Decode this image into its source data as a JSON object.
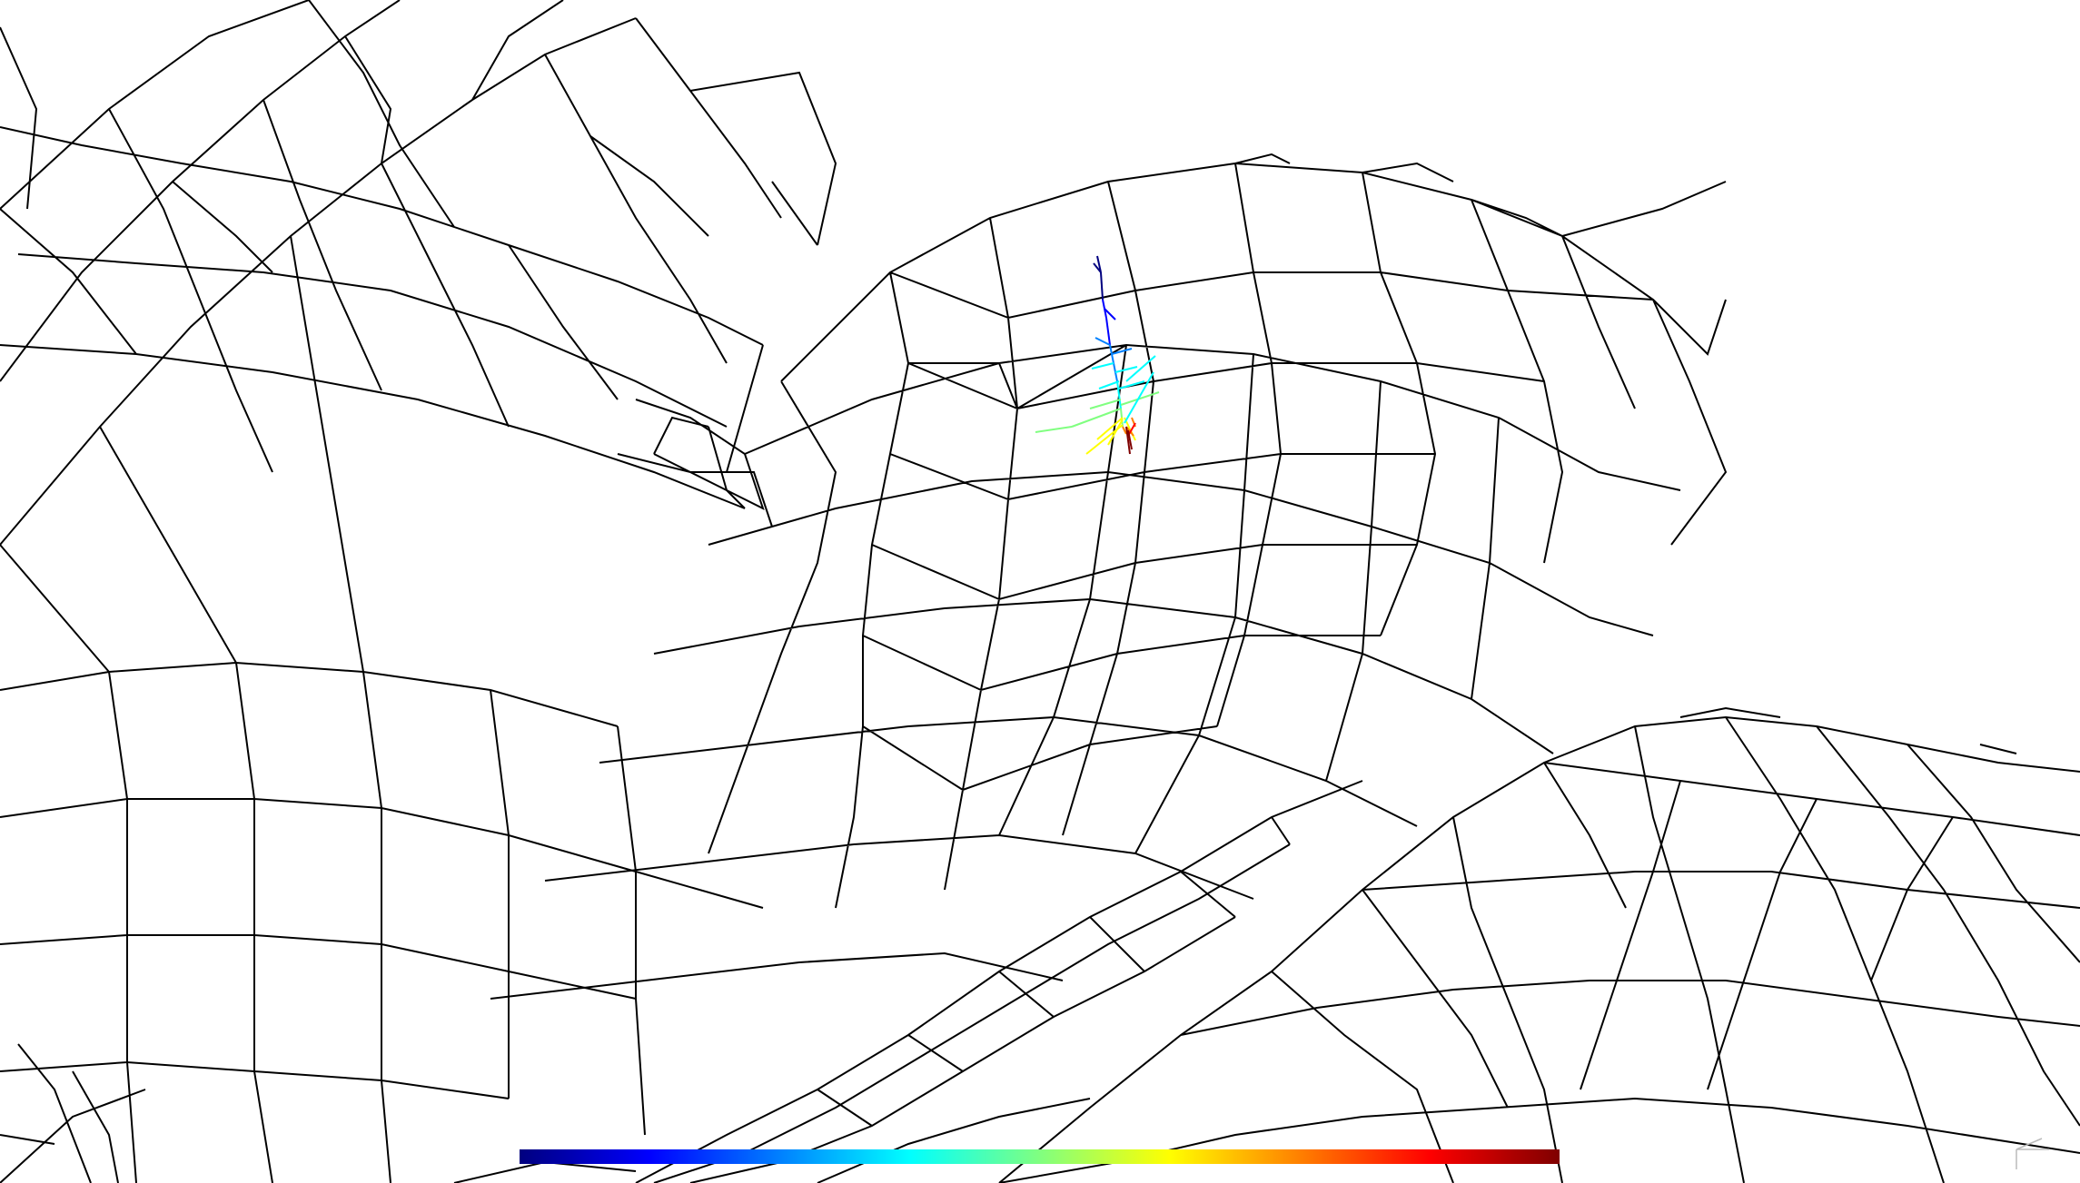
{
  "viewer": {
    "background": "#ffffff",
    "mesh_color": "#000000",
    "colormap": "jet",
    "colormap_stops": [
      "#00007f",
      "#0000ff",
      "#0080ff",
      "#00ffff",
      "#80ff80",
      "#ffff00",
      "#ff8000",
      "#ff0000",
      "#7f0000"
    ]
  }
}
